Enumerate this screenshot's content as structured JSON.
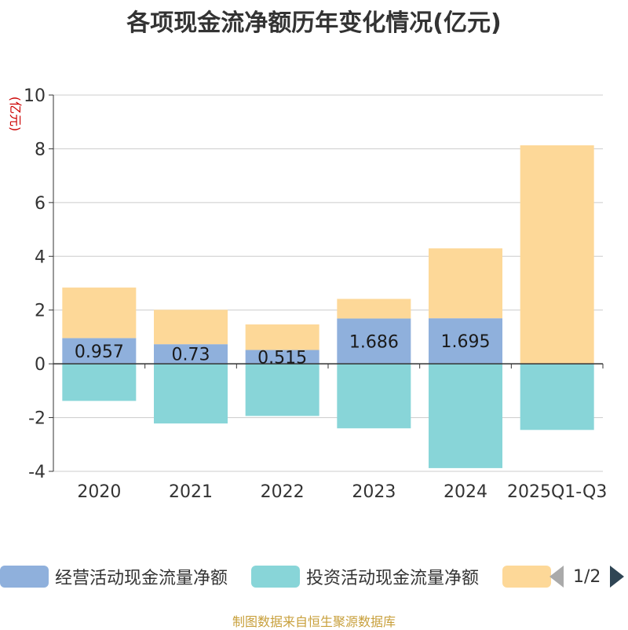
{
  "chart_data": {
    "type": "bar",
    "stacked": true,
    "title": "各项现金流净额历年变化情况(亿元)",
    "ylabel": "(亿元)",
    "xlabel": "",
    "ylim": [
      -4,
      10
    ],
    "yticks": [
      -4,
      -2,
      0,
      2,
      4,
      6,
      8,
      10
    ],
    "categories": [
      "2020",
      "2021",
      "2022",
      "2023",
      "2024",
      "2025Q1-Q3"
    ],
    "series": [
      {
        "name": "经营活动现金流量净额",
        "color": "#8fb0dc",
        "values": [
          0.957,
          0.73,
          0.515,
          1.686,
          1.695,
          -0.02
        ],
        "labels": [
          "0.957",
          "0.73",
          "0.515",
          "1.686",
          "1.695",
          ""
        ]
      },
      {
        "name": "投资活动现金流量净额",
        "color": "#88d5d8",
        "values": [
          -1.38,
          -2.22,
          -1.94,
          -2.4,
          -3.88,
          -2.44
        ]
      },
      {
        "name": "",
        "color": "#fdd898",
        "values": [
          1.88,
          1.28,
          0.95,
          0.73,
          2.6,
          8.13
        ]
      }
    ],
    "legend_position": "bottom",
    "legend_page": "1/2"
  },
  "source_note": "制图数据来自恒生聚源数据库"
}
